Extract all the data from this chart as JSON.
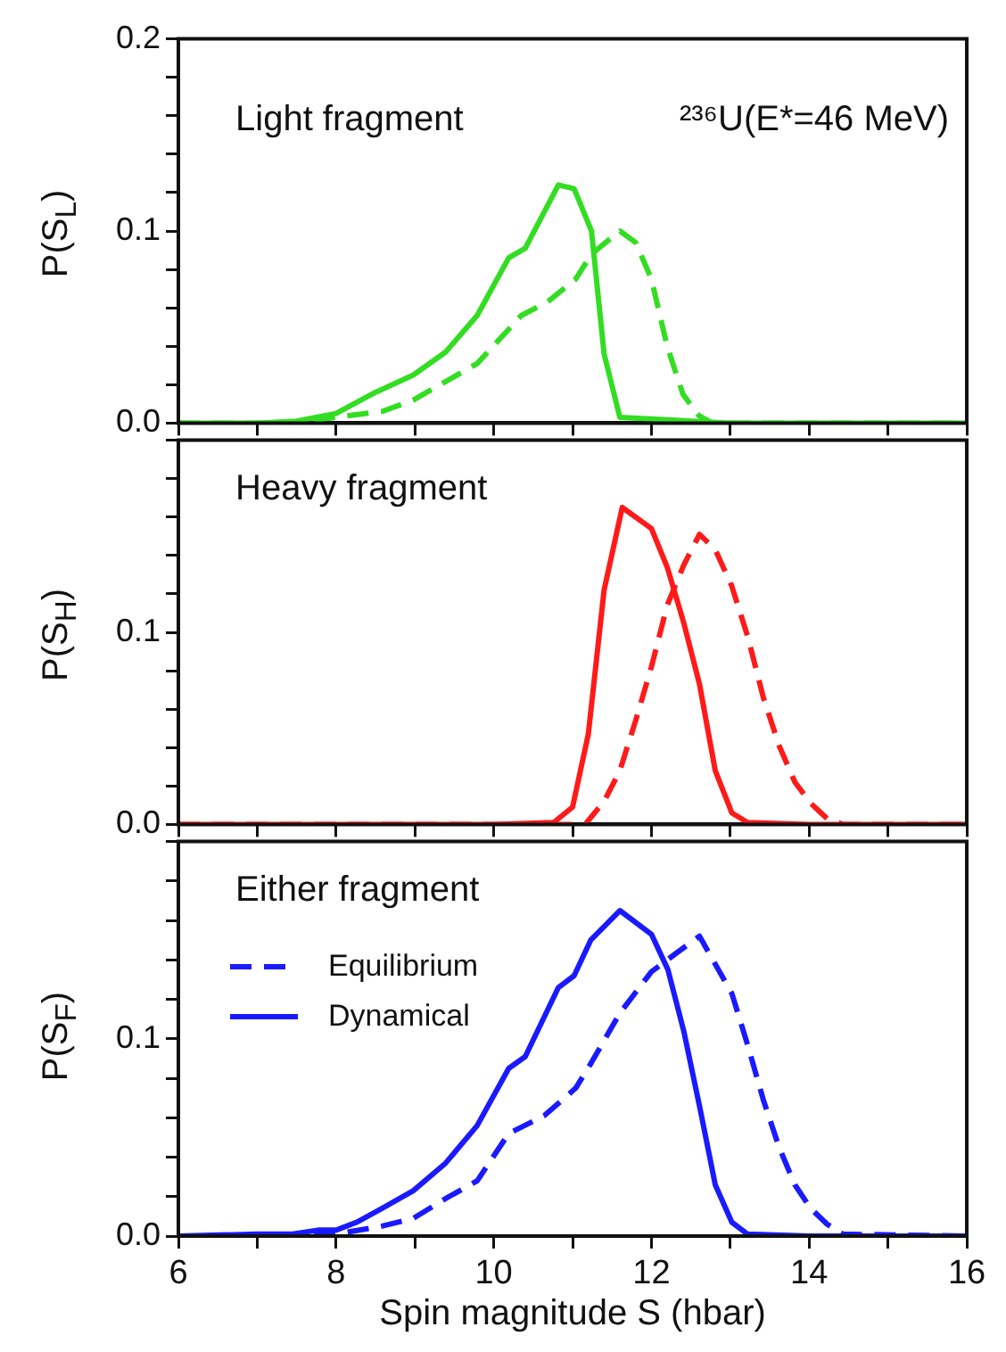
{
  "chart_data": [
    {
      "type": "line",
      "ylabel": "P(S$_{L}$)",
      "annotations": [
        "Light fragment",
        "²³⁶U(E*=46 MeV)"
      ],
      "xlim": [
        6,
        16
      ],
      "xticks": [
        6,
        {
          "value": 7,
          "label": null
        },
        8,
        {
          "value": 9,
          "label": null
        },
        10,
        {
          "value": 11,
          "label": null
        },
        12,
        {
          "value": 13,
          "label": null
        },
        14,
        {
          "value": 15,
          "label": null
        },
        16
      ],
      "ylim": [
        0,
        0.2
      ],
      "yticks": [
        {
          "value": 0,
          "label": "0.0"
        },
        {
          "value": 0.02,
          "label": null
        },
        {
          "value": 0.04,
          "label": null
        },
        {
          "value": 0.06,
          "label": null
        },
        {
          "value": 0.08,
          "label": null
        },
        {
          "value": 0.1,
          "label": "0.1"
        },
        {
          "value": 0.12,
          "label": null
        },
        {
          "value": 0.14,
          "label": null
        },
        {
          "value": 0.16,
          "label": null
        },
        {
          "value": 0.18,
          "label": null
        },
        {
          "value": 0.2,
          "label": "0.2"
        }
      ],
      "tick_labels": "y",
      "grid": false,
      "legend": false,
      "marker": "none",
      "series": [
        {
          "color": "#33dd22",
          "line_style": "dashed",
          "x": [
            6,
            7,
            7.5,
            8,
            8.58,
            8.98,
            9.79,
            10.35,
            10.68,
            11.04,
            11.24,
            11.6,
            11.8,
            12,
            12.2,
            12.4,
            12.6,
            12.77,
            14,
            16
          ],
          "values": [
            0,
            0,
            0,
            0.003,
            0.006,
            0.012,
            0.031,
            0.056,
            0.063,
            0.075,
            0.088,
            0.1,
            0.094,
            0.075,
            0.04,
            0.015,
            0.004,
            0,
            0,
            0
          ]
        },
        {
          "color": "#33dd22",
          "line_style": "solid",
          "x": [
            6,
            7,
            7.5,
            8,
            8.5,
            8.98,
            9.39,
            9.79,
            10.19,
            10.4,
            10.82,
            11.02,
            11.24,
            11.4,
            11.6,
            13,
            16
          ],
          "values": [
            0,
            0,
            0.001,
            0.005,
            0.016,
            0.025,
            0.037,
            0.056,
            0.086,
            0.091,
            0.124,
            0.122,
            0.1,
            0.036,
            0.003,
            0,
            0
          ]
        }
      ]
    },
    {
      "type": "line",
      "ylabel": "P(S$_{H}$)",
      "annotations": [
        "Heavy fragment"
      ],
      "xlim": [
        6,
        16
      ],
      "xticks": [
        6,
        {
          "value": 7,
          "label": null
        },
        8,
        {
          "value": 9,
          "label": null
        },
        10,
        {
          "value": 11,
          "label": null
        },
        12,
        {
          "value": 13,
          "label": null
        },
        14,
        {
          "value": 15,
          "label": null
        },
        16
      ],
      "ylim": [
        0,
        0.2
      ],
      "yticks": [
        {
          "value": 0,
          "label": "0.0"
        },
        {
          "value": 0.02,
          "label": null
        },
        {
          "value": 0.04,
          "label": null
        },
        {
          "value": 0.06,
          "label": null
        },
        {
          "value": 0.08,
          "label": null
        },
        {
          "value": 0.1,
          "label": "0.1"
        },
        {
          "value": 0.12,
          "label": null
        },
        {
          "value": 0.14,
          "label": null
        },
        {
          "value": 0.16,
          "label": null
        },
        {
          "value": 0.18,
          "label": null
        },
        {
          "value": 0.2,
          "label": null
        }
      ],
      "tick_labels": "y",
      "grid": false,
      "legend": false,
      "marker": "none",
      "series": [
        {
          "color": "#ff1a1a",
          "line_style": "dashed",
          "x": [
            6,
            10,
            11.16,
            11.4,
            11.6,
            11.8,
            12,
            12.2,
            12.41,
            12.61,
            12.81,
            13.02,
            13.22,
            13.42,
            13.62,
            13.82,
            14.02,
            14.23,
            14.43,
            16
          ],
          "values": [
            0,
            0,
            0,
            0.012,
            0.028,
            0.054,
            0.082,
            0.114,
            0.135,
            0.151,
            0.143,
            0.124,
            0.098,
            0.066,
            0.041,
            0.022,
            0.011,
            0.003,
            0,
            0
          ]
        },
        {
          "color": "#ff1a1a",
          "line_style": "solid",
          "x": [
            6,
            10,
            10.76,
            11,
            11.2,
            11.4,
            11.63,
            12,
            12.2,
            12.41,
            12.61,
            12.81,
            13.02,
            13.22,
            14,
            16
          ],
          "values": [
            0,
            0,
            0.001,
            0.009,
            0.047,
            0.122,
            0.165,
            0.154,
            0.134,
            0.105,
            0.073,
            0.028,
            0.006,
            0.001,
            0,
            0
          ]
        }
      ]
    },
    {
      "type": "line",
      "ylabel": "P(S$_{F}$)",
      "xlabel": "Spin magnitude S (hbar)",
      "annotations": [
        "Either fragment"
      ],
      "xlim": [
        6,
        16
      ],
      "xticks": [
        6,
        {
          "value": 7,
          "label": null
        },
        8,
        {
          "value": 9,
          "label": null
        },
        10,
        {
          "value": 11,
          "label": null
        },
        12,
        {
          "value": 13,
          "label": null
        },
        14,
        {
          "value": 15,
          "label": null
        },
        16
      ],
      "ylim": [
        0,
        0.2
      ],
      "yticks": [
        {
          "value": 0,
          "label": "0.0"
        },
        {
          "value": 0.02,
          "label": null
        },
        {
          "value": 0.04,
          "label": null
        },
        {
          "value": 0.06,
          "label": null
        },
        {
          "value": 0.08,
          "label": null
        },
        {
          "value": 0.1,
          "label": "0.1"
        },
        {
          "value": 0.12,
          "label": null
        },
        {
          "value": 0.14,
          "label": null
        },
        {
          "value": 0.16,
          "label": null
        },
        {
          "value": 0.18,
          "label": null
        },
        {
          "value": 0.2,
          "label": null
        }
      ],
      "grid": false,
      "legend": "top left",
      "marker": "none",
      "series": [
        {
          "name": "Equilibrium",
          "color": "#1a1aff",
          "line_style": "dashed",
          "x": [
            6,
            7,
            8,
            8.58,
            8.98,
            9.39,
            9.79,
            10.19,
            10.64,
            11.04,
            11.24,
            11.6,
            12,
            12.37,
            12.61,
            13.02,
            13.22,
            13.42,
            13.62,
            13.82,
            14.02,
            14.23,
            14.43,
            16
          ],
          "values": [
            0,
            0,
            0.001,
            0.005,
            0.009,
            0.019,
            0.028,
            0.052,
            0.061,
            0.075,
            0.088,
            0.113,
            0.134,
            0.145,
            0.152,
            0.123,
            0.097,
            0.069,
            0.045,
            0.026,
            0.014,
            0.006,
            0.001,
            0
          ]
        },
        {
          "name": "Dynamical",
          "color": "#1a1aff",
          "line_style": "solid",
          "x": [
            6,
            7,
            7.45,
            7.77,
            8,
            8.26,
            8.58,
            8.98,
            9.39,
            9.79,
            10.19,
            10.4,
            10.82,
            11.02,
            11.23,
            11.6,
            12,
            12.21,
            12.41,
            12.61,
            12.81,
            13.02,
            13.22,
            14,
            16
          ],
          "values": [
            0,
            0.001,
            0.001,
            0.003,
            0.003,
            0.007,
            0.014,
            0.023,
            0.037,
            0.056,
            0.085,
            0.091,
            0.126,
            0.132,
            0.15,
            0.165,
            0.153,
            0.135,
            0.104,
            0.066,
            0.026,
            0.007,
            0.001,
            0,
            0
          ]
        }
      ]
    }
  ]
}
